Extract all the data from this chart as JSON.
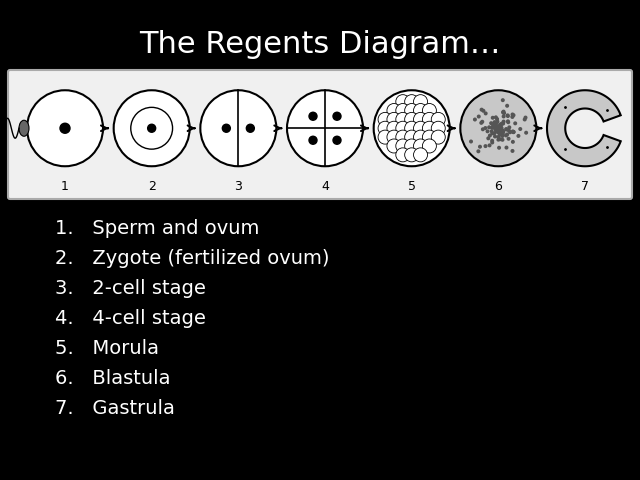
{
  "title": "The Regents Diagram…",
  "title_color": "#ffffff",
  "background_color": "#000000",
  "diagram_bg": "#f0f0f0",
  "list_items": [
    "Sperm and ovum",
    "Zygote (fertilized ovum)",
    "2-cell stage",
    "4-cell stage",
    "Morula",
    "Blastula",
    "Gastrula"
  ],
  "list_color": "#ffffff",
  "title_fontsize": 22,
  "list_fontsize": 14
}
